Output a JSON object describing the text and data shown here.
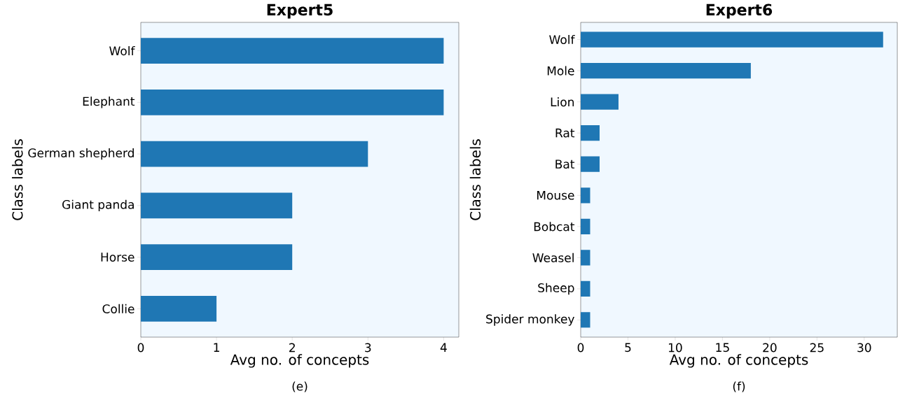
{
  "chart_data": [
    {
      "type": "bar",
      "orientation": "horizontal",
      "title": "Expert5",
      "xlabel": "Avg no. of concepts",
      "ylabel": "Class labels",
      "categories": [
        "Wolf",
        "Elephant",
        "German shepherd",
        "Giant panda",
        "Horse",
        "Collie"
      ],
      "values": [
        4,
        4,
        3,
        2,
        2,
        1
      ],
      "color": "#1f77b4",
      "xlim": [
        0,
        4.2
      ],
      "xticks": [
        0,
        1,
        2,
        3,
        4
      ],
      "annotations": [
        "(e)"
      ]
    },
    {
      "type": "bar",
      "orientation": "horizontal",
      "title": "Expert6",
      "xlabel": "Avg no. of concepts",
      "ylabel": "Class labels",
      "categories": [
        "Wolf",
        "Mole",
        "Lion",
        "Rat",
        "Bat",
        "Mouse",
        "Bobcat",
        "Weasel",
        "Sheep",
        "Spider monkey"
      ],
      "values": [
        32,
        18,
        4,
        2,
        2,
        1,
        1,
        1,
        1,
        1
      ],
      "color": "#1f77b4",
      "xlim": [
        0,
        33.5
      ],
      "xticks": [
        0,
        5,
        10,
        15,
        20,
        25,
        30
      ],
      "annotations": [
        "(f)"
      ]
    }
  ]
}
